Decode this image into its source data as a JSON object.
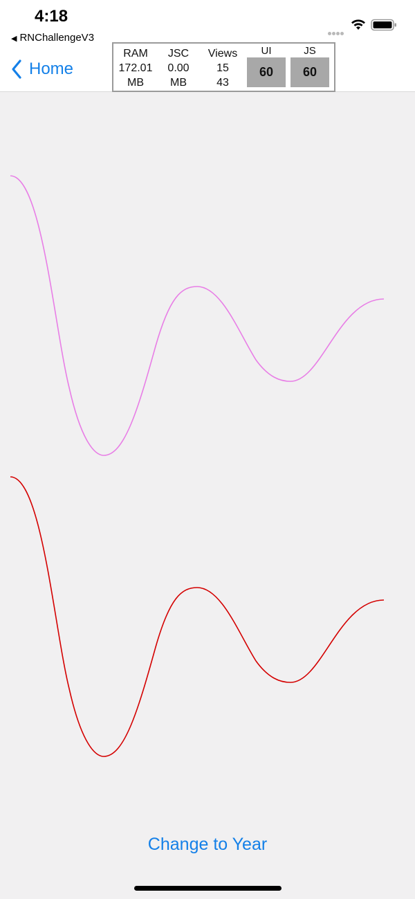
{
  "status_bar": {
    "time": "4:18",
    "back_app_label": "RNChallengeV3",
    "icons": [
      "signal-dots-icon",
      "wifi-icon",
      "battery-icon"
    ]
  },
  "nav": {
    "back_label": "Home"
  },
  "perf_monitor": {
    "ram": {
      "label": "RAM",
      "value": "172.01",
      "unit": "MB"
    },
    "jsc": {
      "label": "JSC",
      "value": "0.00",
      "unit": "MB"
    },
    "views": {
      "label": "Views",
      "value": "15",
      "value2": "43"
    },
    "ui_fps": {
      "label": "UI",
      "value": "60"
    },
    "js_fps": {
      "label": "JS",
      "value": "60"
    }
  },
  "charts": [
    {
      "name": "chart-curve-violet",
      "color": "#e87ee6"
    },
    {
      "name": "chart-curve-red",
      "color": "#d40000"
    }
  ],
  "actions": {
    "change_label": "Change to Year"
  },
  "colors": {
    "accent": "#1480e8",
    "background": "#f1f0f1"
  }
}
